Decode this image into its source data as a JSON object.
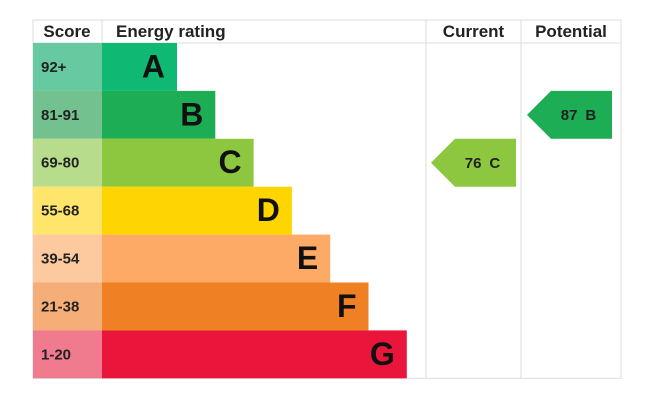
{
  "headers": [
    "Score",
    "Energy rating",
    "Current",
    "Potential"
  ],
  "bands": [
    {
      "score": "92+",
      "letter": "A",
      "color": "#0fb873",
      "score_color": "#66c9a0"
    },
    {
      "score": "81-91",
      "letter": "B",
      "color": "#1cad55",
      "score_color": "#72c18f"
    },
    {
      "score": "69-80",
      "letter": "C",
      "color": "#8dc63f",
      "score_color": "#b7dc8b"
    },
    {
      "score": "55-68",
      "letter": "D",
      "color": "#ffd500",
      "score_color": "#ffe56b"
    },
    {
      "score": "39-54",
      "letter": "E",
      "color": "#fcaa65",
      "score_color": "#fdc99e"
    },
    {
      "score": "21-38",
      "letter": "F",
      "color": "#ef8023",
      "score_color": "#f5ae78"
    },
    {
      "score": "1-20",
      "letter": "G",
      "color": "#e9153b",
      "score_color": "#f07a8e"
    }
  ],
  "current": {
    "value": 76,
    "letter": "C"
  },
  "potential": {
    "value": 87,
    "letter": "B"
  }
}
